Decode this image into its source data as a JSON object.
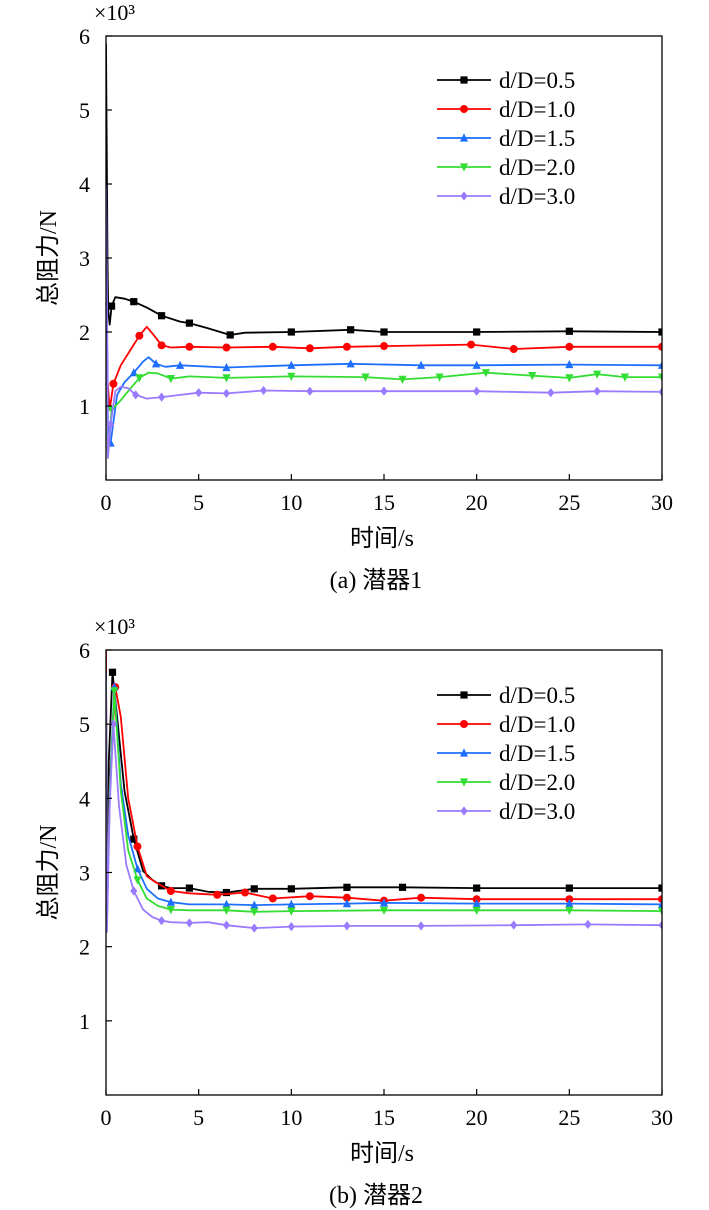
{
  "chart_data": [
    {
      "type": "line",
      "caption": "(a) 潜器1",
      "xlabel": "时间/s",
      "ylabel": "总阻力/N",
      "y_multiplier": "×10³",
      "xlim": [
        0,
        30
      ],
      "ylim": [
        0,
        6
      ],
      "xticks": [
        "0",
        "5",
        "10",
        "15",
        "20",
        "25",
        "30"
      ],
      "yticks": [
        "1",
        "2",
        "3",
        "4",
        "5",
        "6"
      ],
      "legend_position": "top-right",
      "series": [
        {
          "name": "d/D=0.5",
          "ratio": "0.5",
          "color": "#000000",
          "marker": "square",
          "x": [
            0,
            0.08,
            0.12,
            0.2,
            0.3,
            0.5,
            1.0,
            1.5,
            2.2,
            3.0,
            4.0,
            4.5,
            5.5,
            6.7,
            7.5,
            10,
            13.2,
            15,
            20,
            25,
            30
          ],
          "y": [
            5.9,
            3.0,
            2.3,
            2.1,
            2.35,
            2.47,
            2.45,
            2.41,
            2.33,
            2.22,
            2.14,
            2.12,
            2.05,
            1.96,
            1.99,
            2.0,
            2.03,
            2.0,
            2.0,
            2.01,
            2.0
          ]
        },
        {
          "name": "d/D=1.0",
          "ratio": "1.0",
          "color": "#ff0000",
          "marker": "circle",
          "x": [
            0,
            0.08,
            0.2,
            0.4,
            0.8,
            1.3,
            1.8,
            2.2,
            2.6,
            3.0,
            3.5,
            4.5,
            6.5,
            9,
            11,
            13,
            15,
            19.7,
            22,
            25,
            30
          ],
          "y": [
            3.05,
            1.35,
            0.95,
            1.3,
            1.55,
            1.75,
            1.95,
            2.07,
            1.95,
            1.82,
            1.79,
            1.8,
            1.79,
            1.8,
            1.78,
            1.8,
            1.81,
            1.83,
            1.77,
            1.8,
            1.8
          ]
        },
        {
          "name": "d/D=1.5",
          "ratio": "1.5",
          "color": "#1f6fff",
          "marker": "triangle-up",
          "x": [
            0,
            0.1,
            0.25,
            0.6,
            1.0,
            1.5,
            2.0,
            2.3,
            2.7,
            3.2,
            4.0,
            6.5,
            10,
            13.2,
            17,
            20,
            25,
            30
          ],
          "y": [
            4.0,
            0.8,
            0.5,
            1.15,
            1.32,
            1.45,
            1.6,
            1.66,
            1.57,
            1.53,
            1.55,
            1.52,
            1.55,
            1.57,
            1.55,
            1.55,
            1.56,
            1.55
          ]
        },
        {
          "name": "d/D=2.0",
          "ratio": "2.0",
          "color": "#33dd33",
          "marker": "triangle-down",
          "x": [
            0,
            0.1,
            0.3,
            0.7,
            1.2,
            1.8,
            2.3,
            2.8,
            3.5,
            4.5,
            6.5,
            10,
            14,
            16,
            18,
            20.5,
            23,
            25,
            26.5,
            28,
            30
          ],
          "y": [
            2.55,
            0.3,
            0.95,
            1.05,
            1.2,
            1.38,
            1.45,
            1.44,
            1.37,
            1.4,
            1.38,
            1.4,
            1.39,
            1.36,
            1.39,
            1.45,
            1.41,
            1.38,
            1.43,
            1.39,
            1.39
          ]
        },
        {
          "name": "d/D=3.0",
          "ratio": "3.0",
          "color": "#9a7bff",
          "marker": "diamond",
          "x": [
            0,
            0.1,
            0.25,
            0.5,
            0.8,
            1.2,
            1.6,
            2.2,
            3.0,
            4.0,
            5.0,
            6.5,
            8.5,
            11,
            15,
            20,
            24,
            26.5,
            30
          ],
          "y": [
            3.95,
            0.3,
            0.75,
            1.2,
            1.26,
            1.24,
            1.15,
            1.1,
            1.12,
            1.15,
            1.18,
            1.17,
            1.21,
            1.2,
            1.2,
            1.2,
            1.18,
            1.2,
            1.19
          ]
        }
      ]
    },
    {
      "type": "line",
      "caption": "(b) 潜器2",
      "xlabel": "时间/s",
      "ylabel": "总阻力/N",
      "y_multiplier": "×10³",
      "xlim": [
        0,
        30
      ],
      "ylim": [
        0,
        6
      ],
      "xticks": [
        "0",
        "5",
        "10",
        "15",
        "20",
        "25",
        "30"
      ],
      "yticks": [
        "1",
        "2",
        "3",
        "4",
        "5",
        "6"
      ],
      "legend_position": "top-right",
      "series": [
        {
          "name": "d/D=0.5",
          "ratio": "0.5",
          "color": "#000000",
          "marker": "square",
          "x": [
            0,
            0.05,
            0.15,
            0.35,
            0.6,
            1.0,
            1.5,
            2.0,
            2.5,
            3.0,
            3.5,
            4.5,
            5.5,
            6.5,
            8,
            10,
            13,
            16,
            20,
            25,
            30
          ],
          "y": [
            5.9,
            2.3,
            4.5,
            5.7,
            5.1,
            4.1,
            3.45,
            3.02,
            2.9,
            2.82,
            2.79,
            2.79,
            2.74,
            2.73,
            2.78,
            2.78,
            2.8,
            2.8,
            2.79,
            2.79,
            2.79
          ]
        },
        {
          "name": "d/D=1.0",
          "ratio": "1.0",
          "color": "#ff0000",
          "marker": "circle",
          "x": [
            0,
            0.05,
            0.2,
            0.5,
            0.8,
            1.2,
            1.7,
            2.2,
            2.8,
            3.5,
            4.5,
            6,
            7.5,
            9,
            11,
            13,
            15,
            17,
            20,
            25,
            30
          ],
          "y": [
            6.0,
            2.4,
            4.2,
            5.5,
            5.1,
            4.0,
            3.35,
            2.95,
            2.85,
            2.75,
            2.72,
            2.7,
            2.73,
            2.65,
            2.68,
            2.66,
            2.62,
            2.66,
            2.64,
            2.64,
            2.64
          ]
        },
        {
          "name": "d/D=1.5",
          "ratio": "1.5",
          "color": "#1f6fff",
          "marker": "triangle-up",
          "x": [
            0,
            0.05,
            0.2,
            0.45,
            0.8,
            1.2,
            1.7,
            2.2,
            2.8,
            3.5,
            4.5,
            6.5,
            8,
            10,
            13,
            15,
            20,
            25,
            30
          ],
          "y": [
            5.7,
            2.3,
            4.1,
            5.5,
            4.2,
            3.5,
            3.05,
            2.78,
            2.65,
            2.6,
            2.57,
            2.57,
            2.56,
            2.57,
            2.58,
            2.59,
            2.58,
            2.58,
            2.57
          ]
        },
        {
          "name": "d/D=2.0",
          "ratio": "2.0",
          "color": "#33dd33",
          "marker": "triangle-down",
          "x": [
            0,
            0.05,
            0.2,
            0.45,
            0.8,
            1.2,
            1.7,
            2.2,
            2.8,
            3.5,
            4.5,
            6.5,
            8,
            10,
            15,
            20,
            25,
            30
          ],
          "y": [
            5.6,
            2.3,
            4.0,
            5.45,
            4.1,
            3.3,
            2.9,
            2.65,
            2.55,
            2.5,
            2.49,
            2.49,
            2.47,
            2.48,
            2.49,
            2.49,
            2.49,
            2.48
          ]
        },
        {
          "name": "d/D=3.0",
          "ratio": "3.0",
          "color": "#9a7bff",
          "marker": "diamond",
          "x": [
            0,
            0.05,
            0.2,
            0.4,
            0.7,
            1.1,
            1.5,
            2.0,
            2.5,
            3.0,
            3.5,
            4.5,
            5.5,
            6.5,
            8,
            10,
            13,
            17,
            22,
            26,
            30
          ],
          "y": [
            5.6,
            2.2,
            3.9,
            5.0,
            3.9,
            3.1,
            2.75,
            2.5,
            2.4,
            2.35,
            2.33,
            2.32,
            2.33,
            2.29,
            2.25,
            2.27,
            2.28,
            2.28,
            2.29,
            2.3,
            2.29
          ]
        }
      ]
    }
  ]
}
